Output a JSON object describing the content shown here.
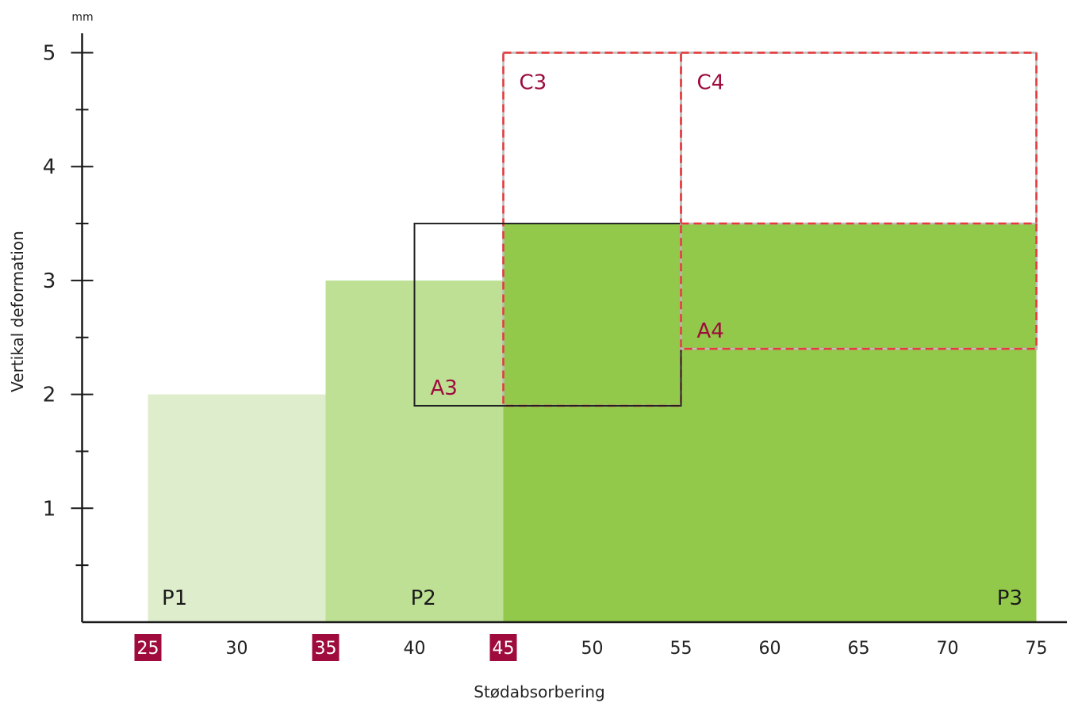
{
  "chart_data": {
    "type": "area",
    "xlabel": "Stødabsorbering",
    "ylabel": "Vertikal deformation",
    "y_unit": "mm",
    "xlim": [
      21.5,
      77
    ],
    "ylim": [
      0,
      5
    ],
    "x_ticks": [
      25,
      30,
      35,
      40,
      45,
      50,
      55,
      60,
      65,
      70,
      75
    ],
    "x_tick_labels": [
      "25",
      "30",
      "35",
      "40",
      "45",
      "50",
      "55",
      "60",
      "65",
      "70",
      "75"
    ],
    "x_highlight_ticks": [
      25,
      35,
      45
    ],
    "y_ticks": [
      1,
      2,
      3,
      4,
      5
    ],
    "y_tick_labels": [
      "1",
      "2",
      "3",
      "4",
      "5"
    ],
    "y_minor_ticks": [
      0.5,
      1.5,
      2.5,
      3.5,
      4.5
    ],
    "grid": false,
    "filled_zones": [
      {
        "name": "P1",
        "x0": 25,
        "x1": 35,
        "y0": 0,
        "y1": 2,
        "color": "#deedcb",
        "label_x": 26.5
      },
      {
        "name": "P2",
        "x0": 35,
        "x1": 45,
        "y0": 0,
        "y1": 3,
        "color": "#bde094",
        "label_x": 40.5
      },
      {
        "name": "P3",
        "x0": 45,
        "x1": 75,
        "y0": 0,
        "y1": 3.5,
        "color": "#92c94a",
        "label_x": 73.5
      }
    ],
    "outlined_zones": [
      {
        "name": "C3",
        "x0": 45,
        "x1": 55,
        "y0": 1.9,
        "y1": 5,
        "style": "dashed",
        "color": "#e8383b",
        "label_corner": "top-left"
      },
      {
        "name": "C4",
        "x0": 55,
        "x1": 75,
        "y0": 2.4,
        "y1": 5,
        "style": "dashed",
        "color": "#e8383b",
        "label_corner": "top-left"
      },
      {
        "name": "A3",
        "x0": 40,
        "x1": 55,
        "y0": 1.9,
        "y1": 3.5,
        "style": "solid",
        "color": "#222222",
        "label_corner": "bottom-left"
      },
      {
        "name": "A4",
        "x0": 55,
        "x1": 75,
        "y0": 2.4,
        "y1": 3.5,
        "style": "dashed",
        "color": "#e8383b",
        "label_corner": "bottom-left"
      }
    ],
    "colors": {
      "zone_label": "#1a1a1a",
      "class_label": "#9e0b3c",
      "highlight_tick_bg": "#9e0b3c",
      "axis": "#1a1a1a",
      "gray_dash": "#bcbcbc"
    }
  }
}
